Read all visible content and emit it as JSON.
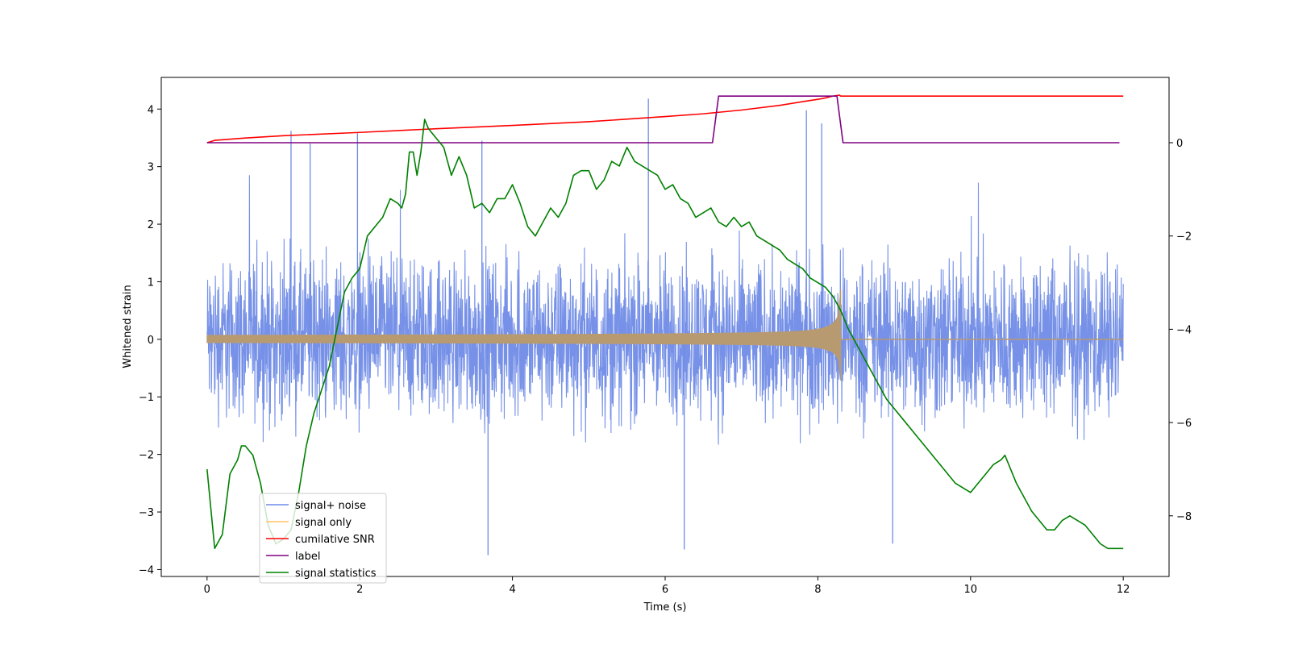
{
  "chart_data": {
    "type": "line",
    "xlabel": "Time (s)",
    "ylabel": "Whitened strain",
    "xlim": [
      -0.6,
      12.6
    ],
    "ylim_left": [
      -4.12,
      4.55
    ],
    "ylim_right": [
      -9.3,
      1.4
    ],
    "x_ticks": [
      0,
      2,
      4,
      6,
      8,
      10,
      12
    ],
    "x_tick_labels": [
      "0",
      "2",
      "4",
      "6",
      "8",
      "10",
      "12"
    ],
    "y_left_ticks": [
      -4,
      -3,
      -2,
      -1,
      0,
      1,
      2,
      3,
      4
    ],
    "y_left_tick_labels": [
      "−4",
      "−3",
      "−2",
      "−1",
      "0",
      "1",
      "2",
      "3",
      "4"
    ],
    "y_right_ticks": [
      -8,
      -6,
      -4,
      -2,
      0
    ],
    "y_right_tick_labels": [
      "−8",
      "−6",
      "−4",
      "−2",
      "0"
    ],
    "grid": false,
    "legend": {
      "position": "lower-left",
      "entries": [
        {
          "label": "signal+ noise",
          "color": "#6f8be6"
        },
        {
          "label": "signal only",
          "color": "#ffc266"
        },
        {
          "label": "cumilative SNR",
          "color": "#ff0000"
        },
        {
          "label": "label",
          "color": "#800080"
        },
        {
          "label": "signal statistics",
          "color": "#008000"
        }
      ]
    },
    "series": [
      {
        "name": "signal+ noise",
        "axis": "left",
        "color": "#6f8be6",
        "kind": "noise",
        "x_range": [
          0,
          12
        ],
        "typical_band": [
          -1.6,
          1.6
        ],
        "range": [
          -3.75,
          4.18
        ],
        "spikes": [
          [
            1.1,
            3.62
          ],
          [
            1.35,
            3.4
          ],
          [
            1.97,
            3.58
          ],
          [
            3.6,
            3.45
          ],
          [
            3.68,
            -3.75
          ],
          [
            5.78,
            4.18
          ],
          [
            6.25,
            -3.65
          ],
          [
            7.85,
            3.98
          ],
          [
            8.05,
            3.75
          ],
          [
            8.98,
            -3.55
          ]
        ]
      },
      {
        "name": "signal only",
        "axis": "left",
        "color": "#b89a70",
        "kind": "chirp",
        "x_range": [
          0,
          12
        ],
        "merger_time": 8.3,
        "peak_amplitude": 0.87,
        "trough_amplitude": -0.72,
        "early_amplitude": 0.07
      },
      {
        "name": "cumilative SNR",
        "axis": "right",
        "color": "#ff0000",
        "x": [
          0.0,
          0.1,
          0.5,
          1.0,
          2.0,
          3.0,
          4.0,
          5.0,
          6.0,
          6.5,
          7.0,
          7.5,
          7.8,
          8.0,
          8.1,
          8.2,
          8.28,
          8.3,
          12.0
        ],
        "y": [
          0.0,
          0.05,
          0.1,
          0.15,
          0.22,
          0.3,
          0.37,
          0.45,
          0.56,
          0.62,
          0.7,
          0.8,
          0.88,
          0.93,
          0.96,
          1.0,
          1.02,
          1.0,
          1.0
        ]
      },
      {
        "name": "label",
        "axis": "right",
        "color": "#800080",
        "x": [
          0.0,
          6.62,
          6.7,
          8.25,
          8.33,
          11.95
        ],
        "y": [
          0,
          0,
          1,
          1,
          0,
          0
        ]
      },
      {
        "name": "signal statistics",
        "axis": "right",
        "color": "#008000",
        "x": [
          0.0,
          0.1,
          0.2,
          0.3,
          0.4,
          0.45,
          0.5,
          0.6,
          0.7,
          0.8,
          0.9,
          1.0,
          1.1,
          1.2,
          1.3,
          1.4,
          1.5,
          1.6,
          1.7,
          1.8,
          1.9,
          2.0,
          2.1,
          2.2,
          2.3,
          2.4,
          2.5,
          2.55,
          2.6,
          2.65,
          2.7,
          2.75,
          2.8,
          2.85,
          2.9,
          3.0,
          3.1,
          3.2,
          3.3,
          3.4,
          3.5,
          3.6,
          3.7,
          3.8,
          3.9,
          4.0,
          4.1,
          4.2,
          4.3,
          4.4,
          4.5,
          4.6,
          4.7,
          4.8,
          4.9,
          5.0,
          5.1,
          5.2,
          5.3,
          5.4,
          5.5,
          5.6,
          5.7,
          5.8,
          5.9,
          6.0,
          6.1,
          6.2,
          6.3,
          6.4,
          6.5,
          6.6,
          6.7,
          6.8,
          6.9,
          7.0,
          7.1,
          7.2,
          7.3,
          7.4,
          7.5,
          7.6,
          7.7,
          7.8,
          7.9,
          8.0,
          8.1,
          8.2,
          8.3,
          8.4,
          8.5,
          8.6,
          8.7,
          8.8,
          8.9,
          9.0,
          9.1,
          9.2,
          9.3,
          9.4,
          9.5,
          9.6,
          9.7,
          9.8,
          9.9,
          10.0,
          10.1,
          10.2,
          10.3,
          10.4,
          10.45,
          10.5,
          10.6,
          10.7,
          10.8,
          10.9,
          11.0,
          11.1,
          11.2,
          11.3,
          11.4,
          11.5,
          11.6,
          11.7,
          11.8,
          11.9,
          12.0
        ],
        "y": [
          -7.0,
          -8.7,
          -8.4,
          -7.1,
          -6.8,
          -6.5,
          -6.5,
          -6.7,
          -7.3,
          -8.2,
          -8.6,
          -8.5,
          -8.3,
          -7.5,
          -6.5,
          -5.8,
          -5.3,
          -4.8,
          -4.0,
          -3.2,
          -2.9,
          -2.7,
          -2.0,
          -1.8,
          -1.6,
          -1.2,
          -1.3,
          -1.4,
          -1.1,
          -0.2,
          -0.2,
          -0.7,
          -0.2,
          0.5,
          0.3,
          0.1,
          -0.1,
          -0.7,
          -0.3,
          -0.7,
          -1.4,
          -1.3,
          -1.5,
          -1.2,
          -1.2,
          -0.9,
          -1.3,
          -1.8,
          -2.0,
          -1.7,
          -1.4,
          -1.6,
          -1.3,
          -0.7,
          -0.6,
          -0.6,
          -1.0,
          -0.8,
          -0.4,
          -0.5,
          -0.1,
          -0.4,
          -0.5,
          -0.6,
          -0.7,
          -1.0,
          -0.9,
          -1.2,
          -1.3,
          -1.6,
          -1.5,
          -1.4,
          -1.7,
          -1.8,
          -1.6,
          -1.8,
          -1.7,
          -2.0,
          -2.1,
          -2.2,
          -2.3,
          -2.5,
          -2.6,
          -2.7,
          -2.9,
          -3.0,
          -3.1,
          -3.3,
          -3.6,
          -4.0,
          -4.3,
          -4.6,
          -4.9,
          -5.2,
          -5.5,
          -5.7,
          -5.9,
          -6.1,
          -6.3,
          -6.5,
          -6.7,
          -6.9,
          -7.1,
          -7.3,
          -7.4,
          -7.5,
          -7.3,
          -7.1,
          -6.9,
          -6.8,
          -6.7,
          -6.9,
          -7.3,
          -7.6,
          -7.9,
          -8.1,
          -8.3,
          -8.3,
          -8.1,
          -8.0,
          -8.1,
          -8.2,
          -8.4,
          -8.6,
          -8.7,
          -8.7,
          -8.7
        ]
      }
    ]
  }
}
